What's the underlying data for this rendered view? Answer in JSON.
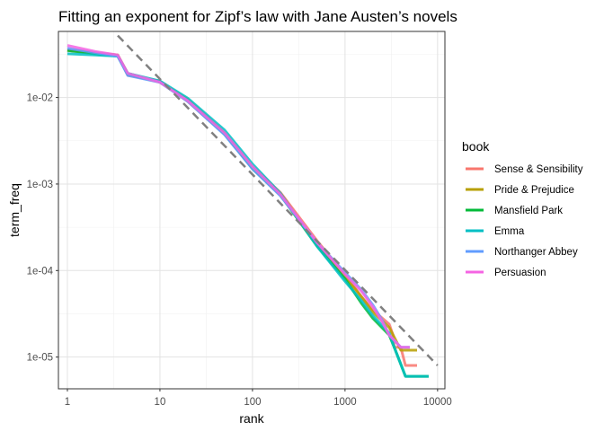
{
  "chart_data": {
    "type": "line",
    "title": "Fitting an exponent for Zipf’s law with Jane Austen’s novels",
    "xlabel": "rank",
    "ylabel": "term_freq",
    "x_scale": "log10",
    "y_scale": "log10",
    "xlim": [
      0.8,
      12000
    ],
    "ylim": [
      4.3e-06,
      0.058
    ],
    "x_ticks": [
      1,
      10,
      100,
      1000,
      10000
    ],
    "x_tick_labels": [
      "1",
      "10",
      "100",
      "1000",
      "10000"
    ],
    "y_ticks": [
      1e-05,
      0.0001,
      0.001,
      0.01
    ],
    "y_tick_labels": [
      "1e-05",
      "1e-04",
      "1e-03",
      "1e-02"
    ],
    "grid": true,
    "legend": {
      "title": "book",
      "position": "right"
    },
    "fit_line": {
      "style": "dashed",
      "color": "#808080",
      "x": [
        3.5,
        10000
      ],
      "y": [
        0.052,
        8e-06
      ]
    },
    "series": [
      {
        "name": "Sense & Sensibility",
        "color": "#F8766D",
        "x": [
          1,
          2,
          3.5,
          4.5,
          10,
          20,
          50,
          100,
          200,
          500,
          1000,
          1500,
          2000,
          3000,
          3300,
          3400,
          4000,
          4500,
          6000
        ],
        "y": [
          0.036,
          0.033,
          0.031,
          0.018,
          0.0155,
          0.009,
          0.0038,
          0.0016,
          0.0008,
          0.00022,
          9e-05,
          5e-05,
          3.5e-05,
          2.4e-05,
          1.8e-05,
          1.3e-05,
          1.3e-05,
          8e-06,
          8e-06
        ]
      },
      {
        "name": "Pride & Prejudice",
        "color": "#B79F00",
        "x": [
          1,
          2,
          3.5,
          4.5,
          10,
          20,
          50,
          100,
          200,
          500,
          1000,
          1500,
          2000,
          3000,
          3500,
          4000,
          6000
        ],
        "y": [
          0.035,
          0.032,
          0.031,
          0.019,
          0.015,
          0.0095,
          0.0039,
          0.0016,
          0.00078,
          0.0002,
          8.5e-05,
          5e-05,
          3.3e-05,
          2.2e-05,
          1.6e-05,
          1.2e-05,
          1.2e-05
        ]
      },
      {
        "name": "Mansfield Park",
        "color": "#00BA38",
        "x": [
          1,
          2,
          3.5,
          4.5,
          10,
          20,
          50,
          100,
          200,
          500,
          1000,
          1500,
          2000,
          3000,
          3500,
          4500,
          8000
        ],
        "y": [
          0.035,
          0.032,
          0.03,
          0.0185,
          0.015,
          0.0092,
          0.0038,
          0.0015,
          0.00075,
          0.00019,
          8e-05,
          4.2e-05,
          2.8e-05,
          1.8e-05,
          1.2e-05,
          6e-06,
          6e-06
        ]
      },
      {
        "name": "Emma",
        "color": "#00BFC4",
        "x": [
          1,
          2,
          3.5,
          4.5,
          10,
          20,
          50,
          100,
          200,
          500,
          1000,
          1500,
          2000,
          3000,
          3400,
          4500,
          8000
        ],
        "y": [
          0.032,
          0.031,
          0.03,
          0.019,
          0.0155,
          0.0098,
          0.0042,
          0.0017,
          0.00078,
          0.00019,
          7.5e-05,
          4.5e-05,
          3e-05,
          1.9e-05,
          1.3e-05,
          6e-06,
          6e-06
        ]
      },
      {
        "name": "Northanger Abbey",
        "color": "#619CFF",
        "x": [
          1,
          2,
          3.5,
          4.5,
          10,
          20,
          50,
          100,
          200,
          500,
          1000,
          1500,
          2000,
          2500,
          3000,
          4000,
          5000
        ],
        "y": [
          0.037,
          0.033,
          0.03,
          0.018,
          0.015,
          0.009,
          0.0037,
          0.0015,
          0.00073,
          0.00021,
          9.5e-05,
          6e-05,
          4e-05,
          2.7e-05,
          1.8e-05,
          1.3e-05,
          1.3e-05
        ]
      },
      {
        "name": "Persuasion",
        "color": "#F564E3",
        "x": [
          1,
          2,
          3.5,
          4.5,
          10,
          20,
          50,
          100,
          200,
          500,
          1000,
          1500,
          2000,
          2500,
          3000,
          4000,
          5000
        ],
        "y": [
          0.04,
          0.034,
          0.031,
          0.019,
          0.015,
          0.0092,
          0.0039,
          0.0016,
          0.00076,
          0.00021,
          9e-05,
          5.8e-05,
          3.8e-05,
          2.6e-05,
          1.8e-05,
          1.3e-05,
          1.3e-05
        ]
      }
    ]
  }
}
